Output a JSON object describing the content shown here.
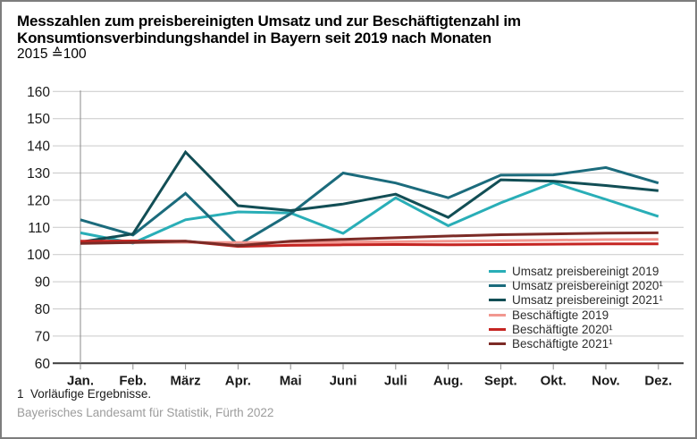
{
  "header": {
    "title_line1": "Messzahlen zum preisbereinigten Umsatz und zur Beschäftigtenzahl im",
    "title_line2": "Konsumtionsverbindungshandel in Bayern seit 2019 nach Monaten",
    "subtitle": "2015 ≙100"
  },
  "footer": {
    "footnote": "1  Vorläufige Ergebnisse.",
    "source": "Bayerisches Landesamt für Statistik, Fürth 2022"
  },
  "chart_data": {
    "type": "line",
    "title": "Messzahlen zum preisbereinigten Umsatz und zur Beschäftigtenzahl im Konsumtionsverbindungshandel in Bayern seit 2019 nach Monaten",
    "subtitle": "2015 ≙100",
    "categories": [
      "Jan.",
      "Feb.",
      "März",
      "Apr.",
      "Mai",
      "Juni",
      "Juli",
      "Aug.",
      "Sept.",
      "Okt.",
      "Nov.",
      "Dez."
    ],
    "series": [
      {
        "name": "Umsatz preisbereinigt 2019",
        "color": "#29aeb7",
        "values": [
          108.0,
          104.2,
          112.8,
          115.7,
          115.3,
          107.8,
          120.9,
          110.6,
          119.0,
          126.4,
          120.3,
          114.0
        ]
      },
      {
        "name": "Umsatz preisbereinigt 2020¹",
        "color": "#1b6b7c",
        "values": [
          112.8,
          107.2,
          122.5,
          103.5,
          115.0,
          130.0,
          126.3,
          120.9,
          129.2,
          129.3,
          132.0,
          126.3
        ]
      },
      {
        "name": "Umsatz preisbereinigt 2021¹",
        "color": "#124e55",
        "values": [
          104.6,
          107.6,
          137.7,
          118.0,
          116.2,
          118.6,
          122.2,
          113.7,
          127.5,
          127.0,
          125.4,
          123.5
        ]
      },
      {
        "name": "Beschäftigte 2019",
        "color": "#f29790",
        "values": [
          104.3,
          104.4,
          104.5,
          104.4,
          104.5,
          104.6,
          104.7,
          104.9,
          105.1,
          105.3,
          105.5,
          105.6
        ]
      },
      {
        "name": "Beschäftigte 2020¹",
        "color": "#c52522",
        "values": [
          104.9,
          105.0,
          104.9,
          103.0,
          103.4,
          103.6,
          103.7,
          103.6,
          103.7,
          103.8,
          103.9,
          103.9
        ]
      },
      {
        "name": "Beschäftigte 2021¹",
        "color": "#7c2b26",
        "values": [
          104.1,
          104.4,
          104.9,
          103.3,
          104.9,
          105.6,
          106.2,
          106.8,
          107.3,
          107.6,
          107.9,
          108.0
        ]
      }
    ],
    "ylim": [
      60,
      160
    ],
    "ytick_step": 10,
    "grid": true,
    "grid_color": "#c9c9c9",
    "axis_color": "#3c3c3c",
    "minor_axis_color": "#8a8a8a",
    "tick_label_color": "#1a1a1a",
    "legend_position": "inside-bottom-right"
  }
}
